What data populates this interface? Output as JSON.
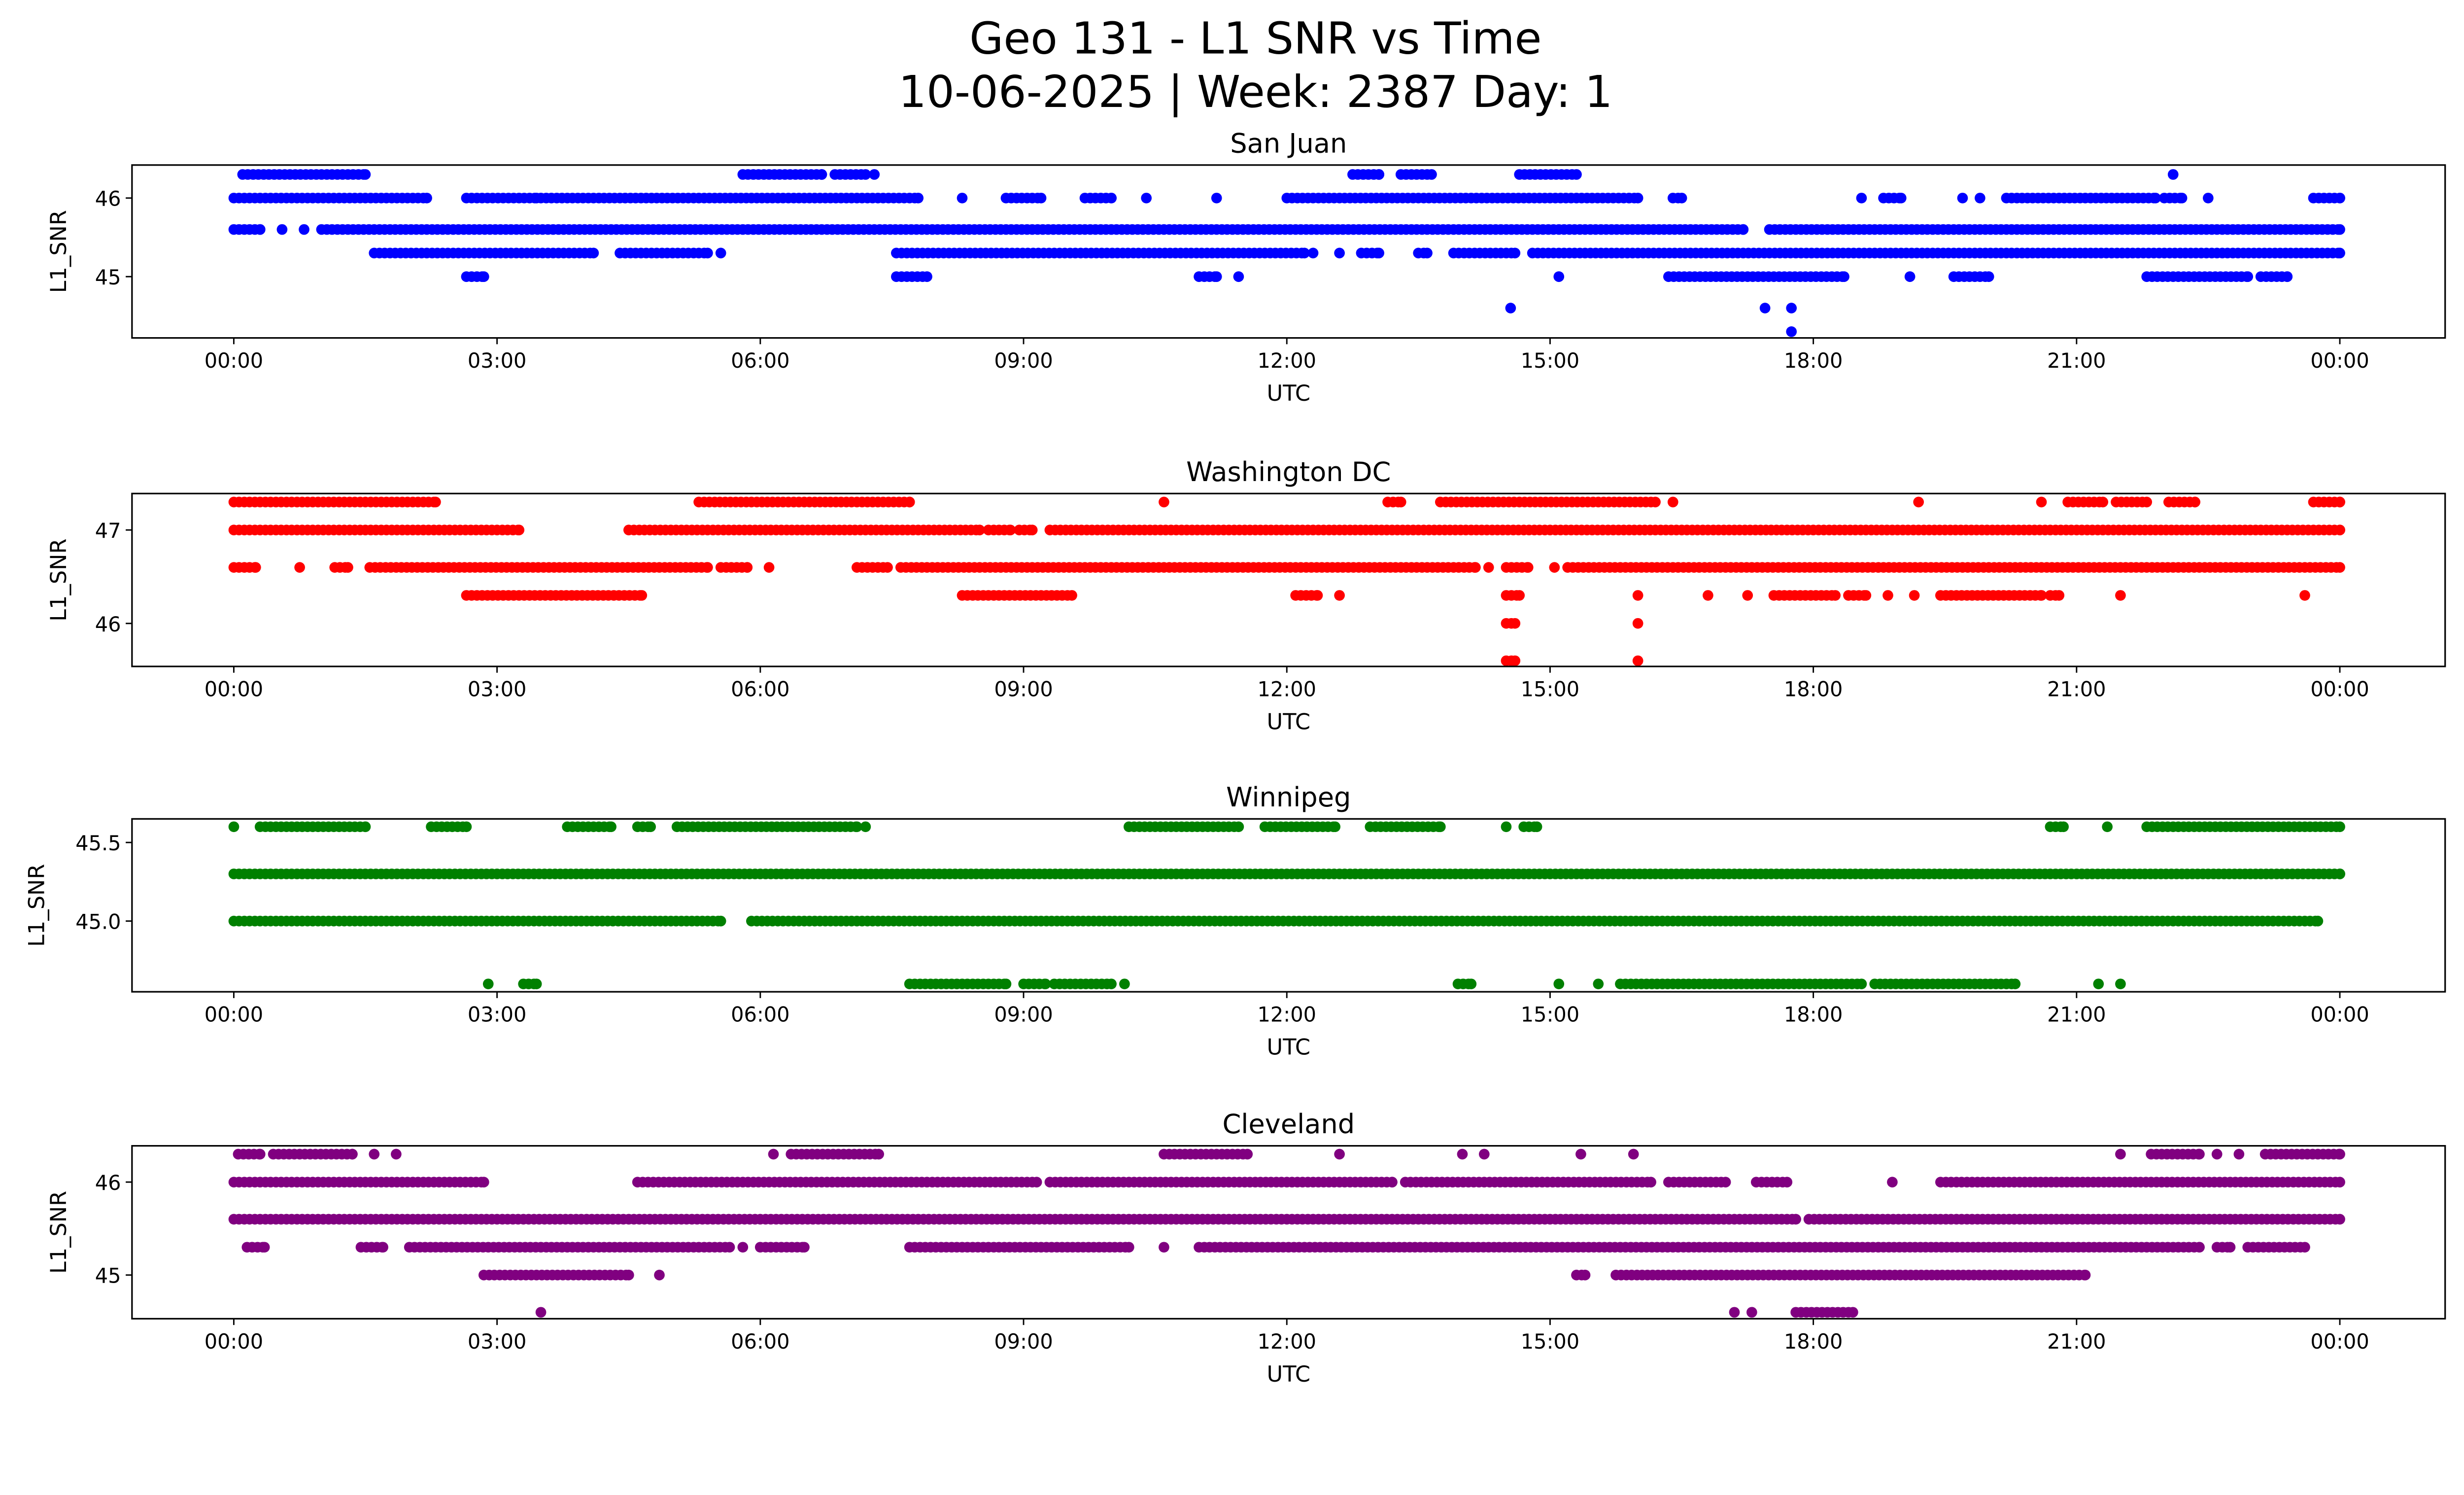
{
  "title_line1": "Geo 131 - L1 SNR vs Time",
  "title_line2": "10-06-2025 | Week: 2387 Day: 1",
  "chart_data": [
    {
      "type": "scatter",
      "title": "San Juan",
      "xlabel": "UTC",
      "ylabel": "L1_SNR",
      "color": "#0000ff",
      "xlim_hours": [
        -1.16,
        25.2
      ],
      "ylim": [
        44.22,
        46.42
      ],
      "xticks": [
        "00:00",
        "03:00",
        "06:00",
        "09:00",
        "12:00",
        "15:00",
        "18:00",
        "21:00",
        "00:00"
      ],
      "yticks": [
        {
          "v": 46,
          "label": "46"
        },
        {
          "v": 45,
          "label": "45"
        }
      ],
      "levels": [
        {
          "y": 46.3,
          "runs": [
            [
              0.1,
              1.5
            ],
            [
              5.8,
              6.7
            ],
            [
              6.85,
              7.2
            ],
            [
              7.3
            ],
            [
              12.75,
              13.05
            ],
            [
              13.3,
              13.65
            ],
            [
              14.65,
              15.3
            ],
            [
              22.1
            ]
          ]
        },
        {
          "y": 46.0,
          "runs": [
            [
              0,
              2.2
            ],
            [
              2.65,
              3.45
            ],
            [
              3.5,
              7.8
            ],
            [
              8.3
            ],
            [
              8.8,
              9.2
            ],
            [
              9.7,
              10
            ],
            [
              10.4
            ],
            [
              11.2
            ],
            [
              12,
              16
            ],
            [
              16.4,
              16.5
            ],
            [
              18.55
            ],
            [
              18.8,
              19
            ],
            [
              19.7
            ],
            [
              19.9
            ],
            [
              20.2,
              21.9
            ],
            [
              22,
              22.2
            ],
            [
              22.5
            ],
            [
              23.7,
              24
            ]
          ]
        },
        {
          "y": 45.6,
          "runs": [
            [
              0,
              0.3
            ],
            [
              0.55
            ],
            [
              0.8
            ],
            [
              1.0,
              17.2
            ],
            [
              17.5,
              24
            ]
          ]
        },
        {
          "y": 45.3,
          "runs": [
            [
              1.6,
              4.1
            ],
            [
              4.4,
              5.4
            ],
            [
              5.55
            ],
            [
              7.55,
              12.2
            ],
            [
              12.3
            ],
            [
              12.6
            ],
            [
              12.85,
              13.05
            ],
            [
              13.5,
              13.6
            ],
            [
              13.9,
              14.6
            ],
            [
              14.8,
              24
            ]
          ]
        },
        {
          "y": 45.0,
          "runs": [
            [
              2.65,
              2.85
            ],
            [
              7.55,
              7.9
            ],
            [
              11,
              11.2
            ],
            [
              11.45
            ],
            [
              15.1
            ],
            [
              16.35,
              18.35
            ],
            [
              19.1
            ],
            [
              19.6,
              20
            ],
            [
              21.8,
              22.95
            ],
            [
              23.1,
              23.4
            ]
          ]
        },
        {
          "y": 44.6,
          "runs": [
            [
              14.55
            ],
            [
              17.45
            ],
            [
              17.75
            ]
          ]
        },
        {
          "y": 44.3,
          "runs": [
            [
              17.75
            ]
          ]
        }
      ]
    },
    {
      "type": "scatter",
      "title": "Washington DC",
      "xlabel": "UTC",
      "ylabel": "L1_SNR",
      "color": "#ff0000",
      "xlim_hours": [
        -1.16,
        25.2
      ],
      "ylim": [
        45.54,
        47.39
      ],
      "xticks": [
        "00:00",
        "03:00",
        "06:00",
        "09:00",
        "12:00",
        "15:00",
        "18:00",
        "21:00",
        "00:00"
      ],
      "yticks": [
        {
          "v": 47,
          "label": "47"
        },
        {
          "v": 46,
          "label": "46"
        }
      ],
      "levels": [
        {
          "y": 47.3,
          "runs": [
            [
              0,
              2.3
            ],
            [
              5.3,
              7.7
            ],
            [
              10.6
            ],
            [
              13.15,
              13.3
            ],
            [
              13.75,
              16.2
            ],
            [
              16.4
            ],
            [
              19.2
            ],
            [
              20.6
            ],
            [
              20.9,
              21.3
            ],
            [
              21.45,
              21.8
            ],
            [
              22.05,
              22.35
            ],
            [
              23.7,
              24
            ]
          ]
        },
        {
          "y": 47.0,
          "runs": [
            [
              0,
              3.25
            ],
            [
              4.5,
              8.5
            ],
            [
              8.6,
              8.85
            ],
            [
              8.95,
              9.1
            ],
            [
              9.3,
              24
            ]
          ]
        },
        {
          "y": 46.6,
          "runs": [
            [
              0,
              0.25
            ],
            [
              0.75
            ],
            [
              1.15,
              1.3
            ],
            [
              1.55,
              5.4
            ],
            [
              5.55,
              5.85
            ],
            [
              6.1
            ],
            [
              7.1,
              7.45
            ],
            [
              7.6,
              14.15
            ],
            [
              14.3
            ],
            [
              14.5,
              14.75
            ],
            [
              15.05
            ],
            [
              15.2,
              24
            ]
          ]
        },
        {
          "y": 46.3,
          "runs": [
            [
              2.65,
              4.65
            ],
            [
              8.3,
              9.55
            ],
            [
              12.1,
              12.35
            ],
            [
              12.6
            ],
            [
              14.5,
              14.65
            ],
            [
              16
            ],
            [
              16.8
            ],
            [
              17.25
            ],
            [
              17.55,
              18.25
            ],
            [
              18.4,
              18.6
            ],
            [
              18.85
            ],
            [
              19.15
            ],
            [
              19.45,
              20.6
            ],
            [
              20.7,
              20.8
            ],
            [
              21.5
            ],
            [
              23.6
            ]
          ]
        },
        {
          "y": 46.0,
          "runs": [
            [
              14.5,
              14.6
            ],
            [
              16
            ]
          ]
        },
        {
          "y": 45.6,
          "runs": [
            [
              14.5,
              14.6
            ],
            [
              16
            ]
          ]
        }
      ]
    },
    {
      "type": "scatter",
      "title": "Winnipeg",
      "xlabel": "UTC",
      "ylabel": "L1_SNR",
      "color": "#008000",
      "xlim_hours": [
        -1.16,
        25.2
      ],
      "ylim": [
        44.55,
        45.65
      ],
      "xticks": [
        "00:00",
        "03:00",
        "06:00",
        "09:00",
        "12:00",
        "15:00",
        "18:00",
        "21:00",
        "00:00"
      ],
      "yticks": [
        {
          "v": 45.5,
          "label": "45.5"
        },
        {
          "v": 45.0,
          "label": "45.0"
        }
      ],
      "levels": [
        {
          "y": 45.6,
          "runs": [
            [
              0
            ],
            [
              0.3,
              1.5
            ],
            [
              2.25,
              2.65
            ],
            [
              3.8,
              4.3
            ],
            [
              4.6,
              4.75
            ],
            [
              5.05,
              7.1
            ],
            [
              7.2
            ],
            [
              10.2,
              11.45
            ],
            [
              11.75,
              12.55
            ],
            [
              12.95,
              13.75
            ],
            [
              14.5
            ],
            [
              14.7,
              14.85
            ],
            [
              20.7,
              20.85
            ],
            [
              21.35
            ],
            [
              21.8,
              24
            ]
          ]
        },
        {
          "y": 45.3,
          "runs": [
            [
              0,
              24
            ]
          ]
        },
        {
          "y": 45.0,
          "runs": [
            [
              0,
              5.55
            ],
            [
              5.9,
              23.75
            ]
          ]
        },
        {
          "y": 44.6,
          "runs": [
            [
              2.9
            ],
            [
              3.3,
              3.45
            ],
            [
              7.7,
              8.8
            ],
            [
              9.0,
              9.25
            ],
            [
              9.35,
              10.0
            ],
            [
              10.15
            ],
            [
              13.95,
              14.1
            ],
            [
              15.1
            ],
            [
              15.55
            ],
            [
              15.8,
              18.55
            ],
            [
              18.7,
              20.3
            ],
            [
              21.25
            ],
            [
              21.5
            ]
          ]
        }
      ]
    },
    {
      "type": "scatter",
      "title": "Cleveland",
      "xlabel": "UTC",
      "ylabel": "L1_SNR",
      "color": "#800080",
      "xlim_hours": [
        -1.16,
        25.2
      ],
      "ylim": [
        44.53,
        46.39
      ],
      "xticks": [
        "00:00",
        "03:00",
        "06:00",
        "09:00",
        "12:00",
        "15:00",
        "18:00",
        "21:00",
        "00:00"
      ],
      "yticks": [
        {
          "v": 46,
          "label": "46"
        },
        {
          "v": 45,
          "label": "45"
        }
      ],
      "levels": [
        {
          "y": 46.3,
          "runs": [
            [
              0.05,
              0.3
            ],
            [
              0.45,
              1.35
            ],
            [
              1.6
            ],
            [
              1.85
            ],
            [
              6.15
            ],
            [
              6.35,
              7.35
            ],
            [
              10.6,
              11.55
            ],
            [
              12.6
            ],
            [
              14
            ],
            [
              14.25
            ],
            [
              15.35
            ],
            [
              15.95
            ],
            [
              21.5
            ],
            [
              21.85,
              22.4
            ],
            [
              22.6
            ],
            [
              22.85
            ],
            [
              23.15,
              24
            ]
          ]
        },
        {
          "y": 46.0,
          "runs": [
            [
              0,
              2.85
            ],
            [
              4.6,
              9.15
            ],
            [
              9.3,
              13.2
            ],
            [
              13.35,
              16.15
            ],
            [
              16.35,
              17
            ],
            [
              17.35,
              17.7
            ],
            [
              18.9
            ],
            [
              19.45,
              24
            ]
          ]
        },
        {
          "y": 45.6,
          "runs": [
            [
              0,
              17.8
            ],
            [
              17.95,
              24
            ]
          ]
        },
        {
          "y": 45.3,
          "runs": [
            [
              0.15,
              0.35
            ],
            [
              1.45,
              1.7
            ],
            [
              2.0,
              5.65
            ],
            [
              5.8
            ],
            [
              6.0,
              6.5
            ],
            [
              7.7,
              10.2
            ],
            [
              10.6
            ],
            [
              11.0,
              22.4
            ],
            [
              22.6,
              22.75
            ],
            [
              22.95,
              23.6
            ]
          ]
        },
        {
          "y": 45.0,
          "runs": [
            [
              2.85,
              4.5
            ],
            [
              4.85
            ],
            [
              15.3,
              15.4
            ],
            [
              15.75,
              21.1
            ]
          ]
        },
        {
          "y": 44.6,
          "runs": [
            [
              3.5
            ],
            [
              17.1
            ],
            [
              17.3
            ],
            [
              17.8,
              18.45
            ]
          ]
        }
      ]
    }
  ]
}
